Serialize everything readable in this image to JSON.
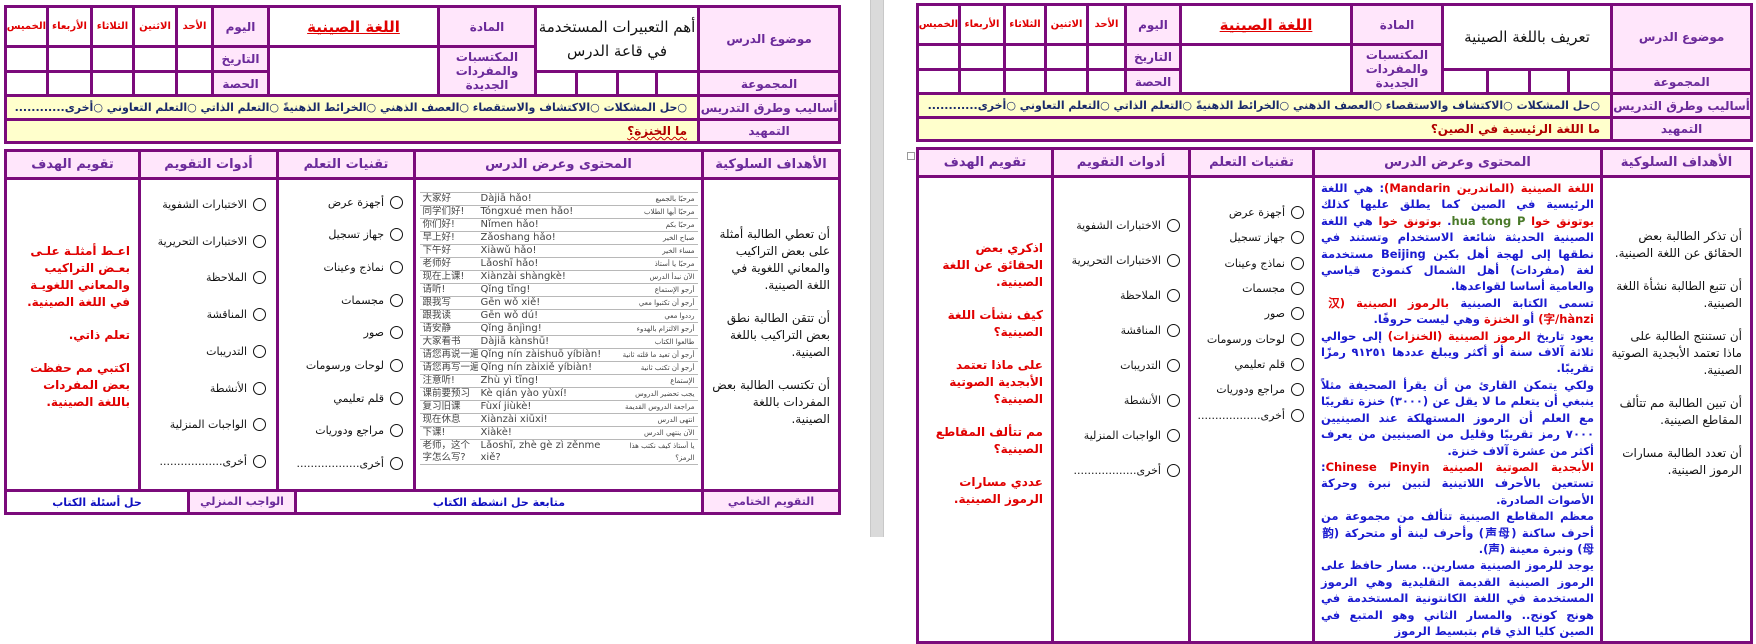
{
  "pages": [
    {
      "top": {
        "days": [
          "الخميس",
          "الأربعاء",
          "الثلاثاء",
          "الاثنين",
          "الأحد"
        ],
        "day_label": "اليوم",
        "date_label": "التاريخ",
        "period_label": "الحصة",
        "subject": "اللغة الصينية",
        "subject_label": "المادة",
        "acquisitions_label": "المكتسبات والمفردات الجديدة",
        "topic": "أهم التعبيرات المستخدمة في قاعة الدرس",
        "topic_label": "موضوع الدرس",
        "group_label": "المجموعة",
        "methods_label": "أساليب وطرق التدريس",
        "methods": "○حل المشكلات  ○الاكتشاف والاستقصاء  ○العصف الذهني  ○الخرائط الذهنيةً  ○التعلم  الذاتي  ○التعلم التعاوني  ○أخرى............",
        "intro_label": "التمهيد",
        "intro": "ما الخنزة؟"
      },
      "main": {
        "headers": [
          "تقويم الهدف",
          "أدوات التقويم",
          "تقنيات التعلم",
          "المحتوى وعرض الدرس",
          "الأهداف السلوكية"
        ],
        "evaluation": [
          "اعـط أمثلـة علـى بعـض التراكيب والمعاني اللغويـة في اللغة الصينية.",
          "تعلم ذاتي.",
          "اكتبي مم حفظت بعض المفردات باللغة الصينية."
        ],
        "tools": [
          "الاختبارات الشفوية",
          "الاختبارات التحريرية",
          "الملاحظة",
          "المناقشة",
          "التدريبات",
          "الأنشطة",
          "الواجبات المنزلية",
          "أخرى.................."
        ],
        "techniques": [
          "أجهزة عرض",
          "جهاز تسجيل",
          "نماذج وعينات",
          "مجسمات",
          "صور",
          "لوحات ورسومات",
          "قلم تعليمي",
          "مراجع ودوريات",
          "أخرى.................."
        ],
        "vocab": [
          [
            "大家好",
            "Dàjiā hǎo!",
            "مرحبًا بالجميع"
          ],
          [
            "同学们好!",
            "Tóngxué men hǎo!",
            "مرحبًا أيها الطلاب"
          ],
          [
            "你们好!",
            "Nǐmen hǎo!",
            "مرحبًا بكم"
          ],
          [
            "早上好!",
            "Zǎoshang hǎo!",
            "صباح الخير"
          ],
          [
            "下午好",
            "Xiàwǔ hǎo!",
            "مساء الخير"
          ],
          [
            "老师好",
            "Lǎoshī hǎo!",
            "مرحبًا يا أستاذ"
          ],
          [
            "现在上课!",
            "Xiànzài shàngkè!",
            "الآن نبدأ الدرس"
          ],
          [
            "请听!",
            "Qǐng tīng!",
            "أرجو الإستماع"
          ],
          [
            "跟我写",
            "Gēn wǒ xiě!",
            "أرجو أن تكتبوا معي"
          ],
          [
            "跟我读",
            "Gēn wǒ dú!",
            "رددوا معي"
          ],
          [
            "请安静",
            "Qǐng ānjìng!",
            "أرجو الالتزام بالهدوء"
          ],
          [
            "大家看书",
            "Dàjiā kànshū!",
            "طالعوا الكتاب"
          ],
          [
            "请您再说一遍!",
            "Qǐng nín zàishuō yíbiàn!",
            "أرجو أن تعيد ما قلته ثانية"
          ],
          [
            "请您再写一遍!",
            "Qǐng nín zàixiě yíbiàn!",
            "أرجو أن تكتب ثانية"
          ],
          [
            "注意听!",
            "Zhù yì tīng!",
            "الإستماع"
          ],
          [
            "课前要预习",
            "Kè qián yào yùxí!",
            "يجب تحضير الدروس"
          ],
          [
            "复习旧课",
            "Fùxí jiùkè!",
            "مراجعة الدروس القديمة"
          ],
          [
            "现在休息",
            "Xiànzài xiūxi!",
            "انتهى الدرس"
          ],
          [
            "下课!",
            "Xiàkè!",
            "الآن ينتهي الدرس"
          ],
          [
            "老师，这个字怎么写?",
            "Lǎoshī, zhè gè zì zěnme xiě?",
            "يا أستاذ كيف نكتب هذا الرمز؟"
          ]
        ],
        "objectives": [
          "أن تعطي الطالبة أمثلة على بعض التراكيب والمعاني اللغوية في اللغة الصينية.",
          "أن تتقن الطالبة نطق بعض التراكيب باللغة الصينية.",
          "أن تكتسب الطالبة بعض المفردات باللغة الصينية."
        ]
      },
      "footer": {
        "book_questions": "حل أسئلة الكتاب",
        "homework_label": "الواجب المنزلي",
        "followup": "متابعة حل انشطة الكتاب",
        "final_label": "التقويم الختامي"
      }
    },
    {
      "top": {
        "days": [
          "الخميس",
          "الأربعاء",
          "الثلاثاء",
          "الاثنين",
          "الأحد"
        ],
        "day_label": "اليوم",
        "date_label": "التاريخ",
        "period_label": "الحصة",
        "subject": "اللغة الصينية",
        "subject_label": "المادة",
        "acquisitions_label": "المكتسبات والمفردات الجديدة",
        "topic": "تعريف باللغة الصينية",
        "topic_label": "موضوع الدرس",
        "group_label": "المجموعة",
        "methods_label": "أساليب وطرق التدريس",
        "methods": "○حل المشكلات  ○الاكتشاف والاستقصاء  ○العصف الذهني  ○الخرائط الذهنيةً  ○التعلم  الذاتي  ○التعلم التعاوني  ○أخرى............",
        "intro_label": "التمهيد",
        "intro": "ما اللغة الرئيسية في الصين؟"
      },
      "main": {
        "headers": [
          "تقويم الهدف",
          "أدوات التقويم",
          "تقنيات التعلم",
          "المحتوى وعرض الدرس",
          "الأهداف السلوكية"
        ],
        "evaluation": [
          "اذكري بعض الحقائق عن اللغة الصينية.",
          "كيف نشأت اللغة الصينية؟",
          "على ماذا تعتمد الأبجدية الصوتية الصينية؟",
          "مم تتألف المقاطع الصينية؟",
          "عددي مسارات الرموز الصينية."
        ],
        "tools": [
          "الاختبارات الشفوية",
          "الاختبارات التحريرية",
          "الملاحظة",
          "المناقشة",
          "التدريبات",
          "الأنشطة",
          "الواجبات المنزلية",
          "أخرى.................."
        ],
        "techniques": [
          "أجهزة عرض",
          "جهاز تسجيل",
          "نماذج وعينات",
          "مجسمات",
          "صور",
          "لوحات ورسومات",
          "قلم تعليمي",
          "مراجع ودوريات",
          "أخرى.................."
        ],
        "content": [
          [
            [
              "r",
              "اللغة الصينية (الماندرين Mandarin)"
            ],
            [
              "b",
              ":  هي اللغة الرئيسية في الصين كما يطلق عليها كذلك "
            ],
            [
              "r",
              "بوتونق خوا"
            ],
            [
              "g",
              " hua tong P"
            ],
            [
              "b",
              ". "
            ],
            [
              "r",
              "بوتونق خوا"
            ],
            [
              "b",
              " هي اللغة الصينية الحديثة شائعة الاستخدام وتستند في نطقها إلى لهجة أهل بكين Beijing مستخدمة لغة (مفردات) أهل الشمال كنموذج قياسي والعامية أساسا لقواعدها."
            ]
          ],
          [
            [
              "b",
              "تسمى الكتابة الصينية "
            ],
            [
              "r",
              "بالرموز الصينية (汉字/hànzi)"
            ],
            [
              "b",
              " أو "
            ],
            [
              "r",
              "الخنزة"
            ],
            [
              "b",
              " وهي ليست حروفًا."
            ]
          ],
          [
            [
              "b",
              "يعود تاريخ "
            ],
            [
              "r",
              "الرموز الصينية (الخنزات)"
            ],
            [
              "b",
              " إلى حوالي ثلاثة آلاف سنة أو أكثر ويبلغ عددها ٩١٢٥١ رمزًا تقريبًا."
            ]
          ],
          [
            [
              "b",
              "ولكي يتمكن القارئ من أن يقرأ الصحيفة مثلاً ينبغي أن يتعلم ما لا يقل عن (٣٠٠٠) خنزة تقريبًا مع العلم أن الرموز المستهلكة عند الصينيين ٧٠٠٠ رمز تقريبًا وقليل من الصينيين من يعرف أكثر من عشرة آلاف خنزة."
            ]
          ],
          [
            [
              "r",
              "الأبجدية الصوتية الصينية Chinese Pinyin"
            ],
            [
              "b",
              ": تستعين بالأحرف اللاتينية لتبين نبرة وحركة الأصوات الصادرة."
            ]
          ],
          [
            [
              "b",
              "معظم المقاطع الصينية تتألف من مجموعة من أحرف ساكنة (声母) وأحرف لينة أو متحركة (韵母) ونبرة معينة (声)."
            ]
          ],
          [
            [
              "b",
              "يوجد للرموز الصينية مسارين.. مسار حافظ على الرموز الصينية القديمة التقليدية وهي الرموز المستخدمة في اللغة الكانتونية المستخدمة في هونج كونج.. والمسار الثاني وهو المتبع في الصين كليا الذي قام بتبسيط الرموز"
            ]
          ]
        ],
        "objectives": [
          "أن تذكر الطالبة بعض الحقائق عن اللغة الصينية.",
          "أن تتبع الطالبة نشأة اللغة الصينية.",
          "أن تستنتج الطالبة على ماذا تعتمد الأبجدية الصوتية الصينية.",
          "أن تبين الطالبة مم تتألف المقاطع الصينية.",
          "أن تعدد الطالبة مسارات الرموز الصينية."
        ]
      }
    }
  ],
  "colors": {
    "border": "#7b0b7b",
    "label_bg": "#ffe6fb",
    "label_text": "#6b2a9a",
    "highlight_bg": "#ffffcc",
    "red": "#e00000",
    "blue": "#1a1ad0",
    "green": "#4a7a2a"
  }
}
